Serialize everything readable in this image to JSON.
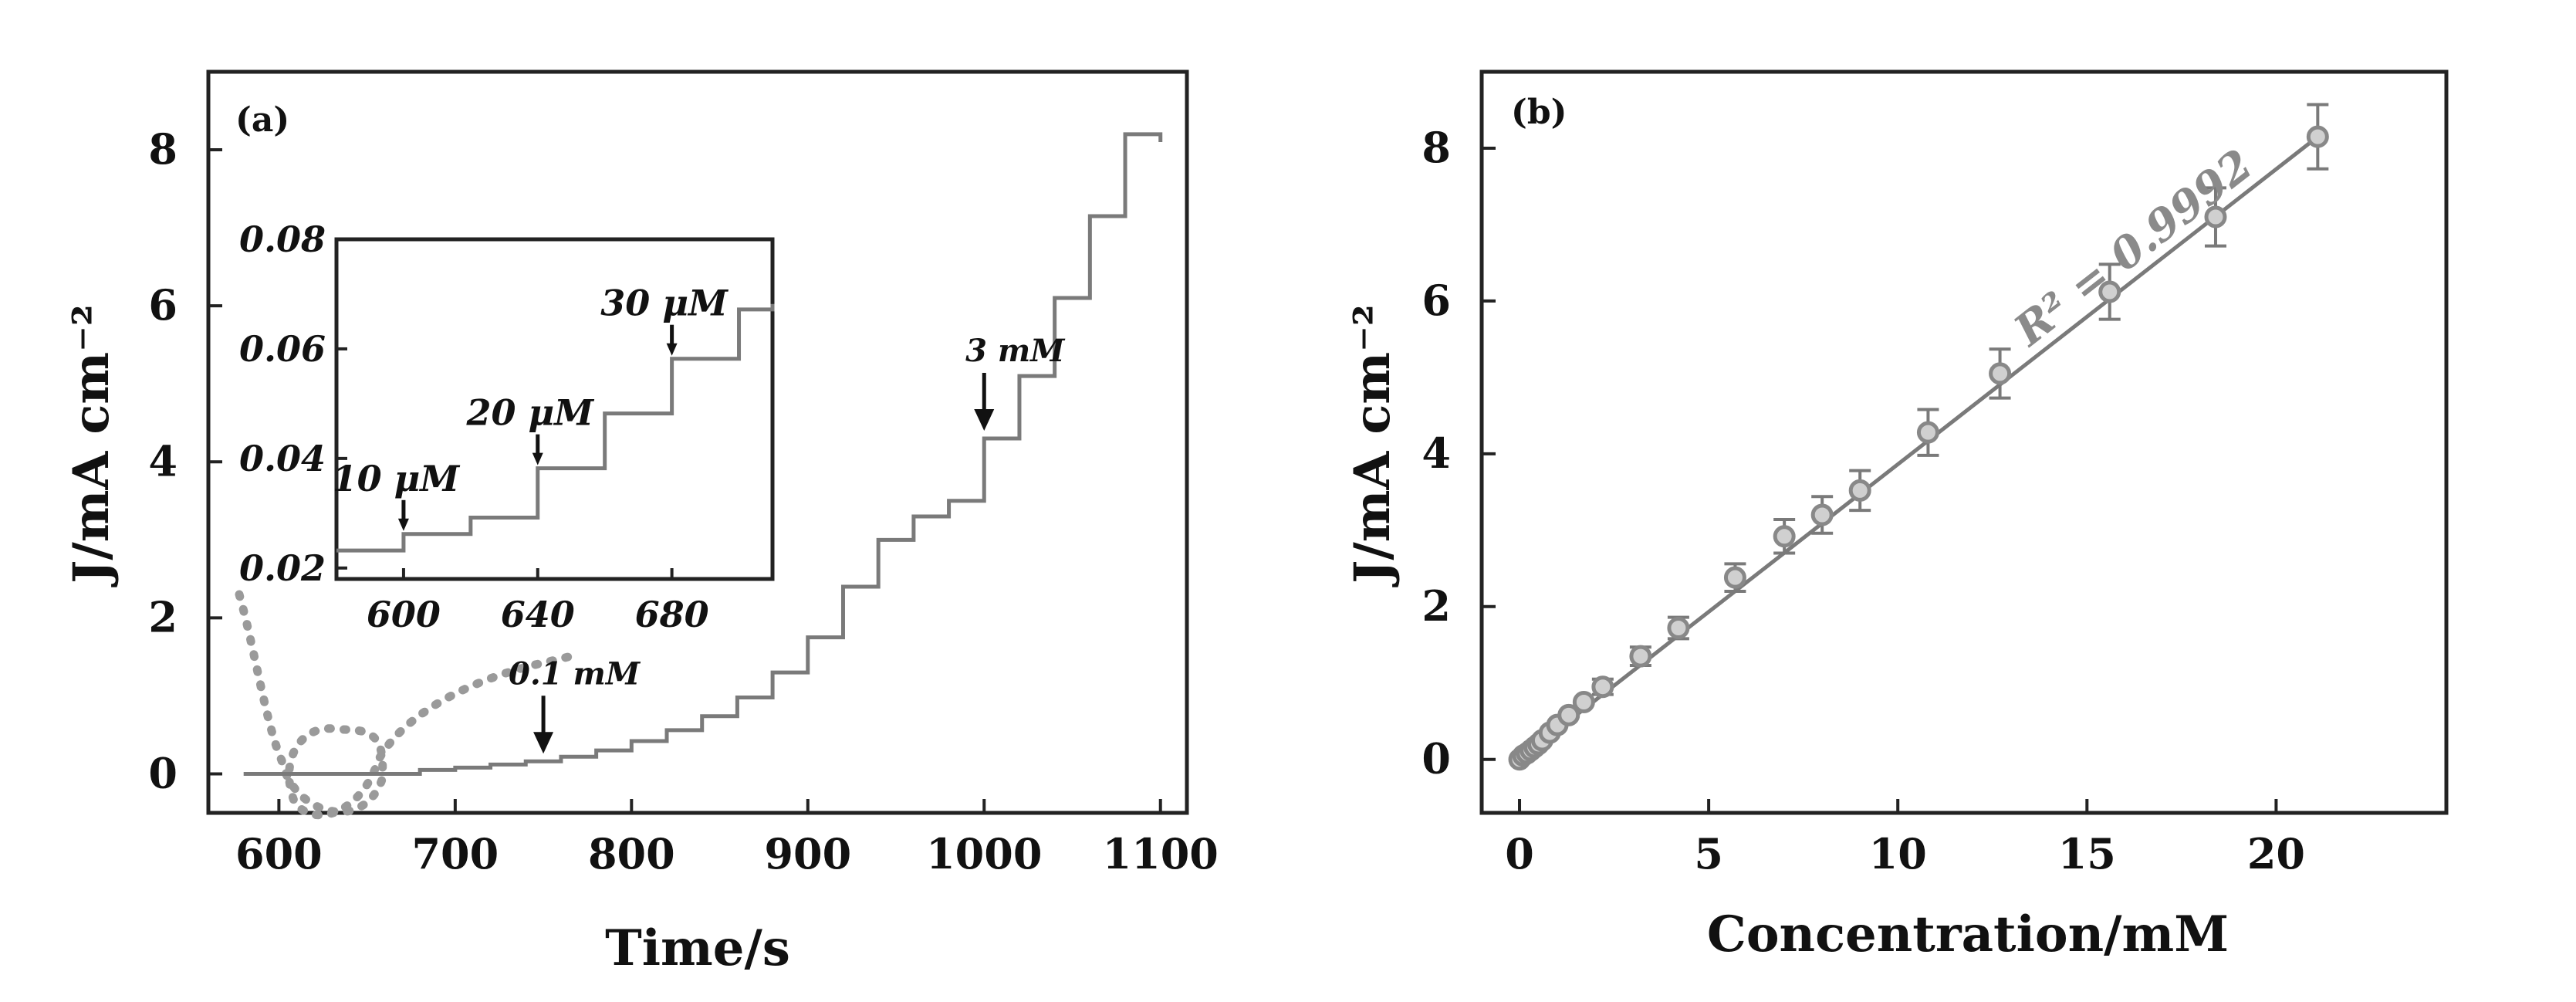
{
  "chart_data": [
    {
      "panel": "(a)",
      "type": "line",
      "xlabel": "Time/s",
      "ylabel": "J/mA cm⁻²",
      "xlim": [
        560,
        1115
      ],
      "ylim": [
        -0.5,
        9.0
      ],
      "xticks": [
        600,
        700,
        800,
        900,
        1000,
        1100
      ],
      "yticks": [
        0,
        2,
        4,
        6,
        8
      ],
      "grid": false,
      "series": [
        {
          "x": [
            580,
            660,
            680,
            700,
            720,
            740,
            760,
            780,
            800,
            820,
            840,
            860,
            880,
            900,
            920,
            940,
            960,
            980,
            1000,
            1020,
            1040,
            1060,
            1080,
            1100
          ],
          "y": [
            0.0,
            0.0,
            0.05,
            0.08,
            0.12,
            0.16,
            0.22,
            0.3,
            0.42,
            0.56,
            0.74,
            0.98,
            1.3,
            1.75,
            2.4,
            3.0,
            3.3,
            3.5,
            4.3,
            5.1,
            6.1,
            7.15,
            8.2,
            8.1
          ]
        }
      ],
      "annotations": [
        {
          "text": "0.1 mM",
          "x": 750,
          "y": 0.16
        },
        {
          "text": "3 mM",
          "x": 1000,
          "y": 4.3
        }
      ],
      "inset": {
        "xlim": [
          580,
          710
        ],
        "ylim": [
          0.018,
          0.08
        ],
        "xticks": [
          600,
          640,
          680
        ],
        "yticks": [
          0.02,
          0.04,
          0.06,
          0.08
        ],
        "x": [
          580,
          600,
          620,
          640,
          660,
          680,
          700,
          710
        ],
        "y": [
          0.0232,
          0.0262,
          0.0292,
          0.0382,
          0.0482,
          0.0582,
          0.0672,
          0.0682
        ],
        "annotations": [
          {
            "text": "10 μM",
            "x": 600,
            "y": 0.0262
          },
          {
            "text": "20 μM",
            "x": 640,
            "y": 0.0382
          },
          {
            "text": "30 μM",
            "x": 680,
            "y": 0.0582
          }
        ]
      }
    },
    {
      "panel": "(b)",
      "type": "scatter",
      "xlabel": "Concentration/mM",
      "ylabel": "J/mA cm⁻²",
      "xlim": [
        -1.0,
        24.5
      ],
      "ylim": [
        -0.7,
        9.0
      ],
      "xticks": [
        0,
        5,
        10,
        15,
        20
      ],
      "yticks": [
        0,
        2,
        4,
        6,
        8
      ],
      "grid": false,
      "points": {
        "x": [
          0.0,
          0.1,
          0.2,
          0.3,
          0.4,
          0.5,
          0.6,
          0.8,
          1.0,
          1.3,
          1.7,
          2.2,
          3.2,
          4.2,
          5.7,
          7.0,
          8.0,
          9.0,
          10.8,
          12.7,
          15.6,
          18.4,
          21.1
        ],
        "y": [
          0.0,
          0.05,
          0.08,
          0.12,
          0.16,
          0.2,
          0.25,
          0.35,
          0.45,
          0.58,
          0.75,
          0.95,
          1.35,
          1.72,
          2.38,
          2.92,
          3.2,
          3.52,
          4.28,
          5.05,
          6.12,
          7.1,
          8.15
        ],
        "yerr": [
          0.02,
          0.02,
          0.02,
          0.03,
          0.03,
          0.03,
          0.04,
          0.05,
          0.05,
          0.06,
          0.08,
          0.1,
          0.12,
          0.14,
          0.18,
          0.22,
          0.24,
          0.26,
          0.3,
          0.32,
          0.36,
          0.38,
          0.42
        ]
      },
      "fit": {
        "x": [
          0.0,
          21.1
        ],
        "y": [
          0.0,
          8.15
        ]
      },
      "fit_label": "R² = 0.9992"
    }
  ]
}
